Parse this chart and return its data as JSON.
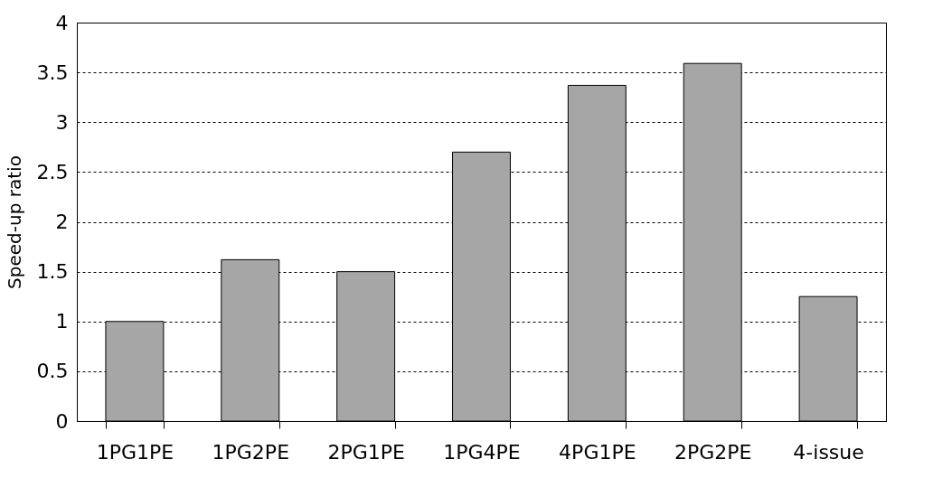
{
  "chart_data": {
    "type": "bar",
    "ylabel": "Speed-up ratio",
    "categories": [
      "1PG1PE",
      "1PG2PE",
      "2PG1PE",
      "1PG4PE",
      "4PG1PE",
      "2PG2PE",
      "4-issue"
    ],
    "values": [
      1.0,
      1.62,
      1.5,
      2.7,
      3.37,
      3.59,
      1.25
    ],
    "color": "#a6a6a6",
    "ylim": [
      0,
      4
    ],
    "yticks": [
      0,
      0.5,
      1,
      1.5,
      2,
      2.5,
      3,
      3.5,
      4
    ],
    "grid": "y"
  }
}
